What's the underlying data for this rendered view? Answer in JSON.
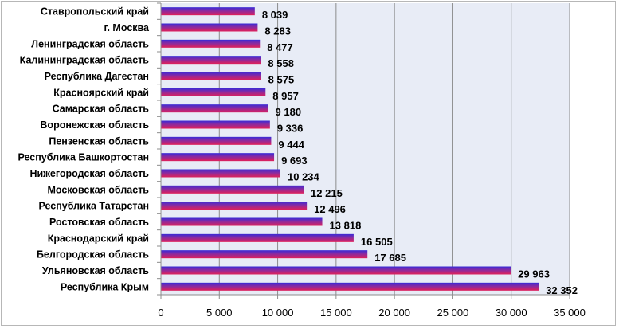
{
  "chart_data": {
    "type": "bar",
    "orientation": "horizontal",
    "title": "",
    "xlabel": "",
    "ylabel": "",
    "xlim": [
      0,
      35000
    ],
    "grid": true,
    "legend": "none",
    "colors": {
      "plot_background": "#e8ecf6",
      "bar_top": "#3a2bd6",
      "bar_bottom": "#e0205a",
      "grid": "#8c8c8c"
    },
    "categories": [
      "Ставропольский край",
      "г. Москва",
      "Ленинградская область",
      "Калининградская область",
      "Республика Дагестан",
      "Красноярский край",
      "Самарская область",
      "Воронежская область",
      "Пензенская область",
      "Республика Башкортостан",
      "Нижегородская область",
      "Московская область",
      "Республика Татарстан",
      "Ростовская область",
      "Краснодарский край",
      "Белгородская область",
      "Ульяновская область",
      "Республика Крым"
    ],
    "values": [
      8039,
      8283,
      8477,
      8558,
      8575,
      8957,
      9180,
      9336,
      9444,
      9693,
      10234,
      12215,
      12496,
      13818,
      16505,
      17685,
      29963,
      32352
    ],
    "value_labels": [
      "8 039",
      "8 283",
      "8 477",
      "8 558",
      "8 575",
      "8 957",
      "9 180",
      "9 336",
      "9 444",
      "9 693",
      "10 234",
      "12 215",
      "12 496",
      "13 818",
      "16 505",
      "17 685",
      "29 963",
      "32 352"
    ],
    "x_ticks": [
      0,
      5000,
      10000,
      15000,
      20000,
      25000,
      30000,
      35000
    ],
    "x_tick_labels": [
      "0",
      "5 000",
      "10 000",
      "15 000",
      "20 000",
      "25 000",
      "30 000",
      "35 000"
    ]
  }
}
